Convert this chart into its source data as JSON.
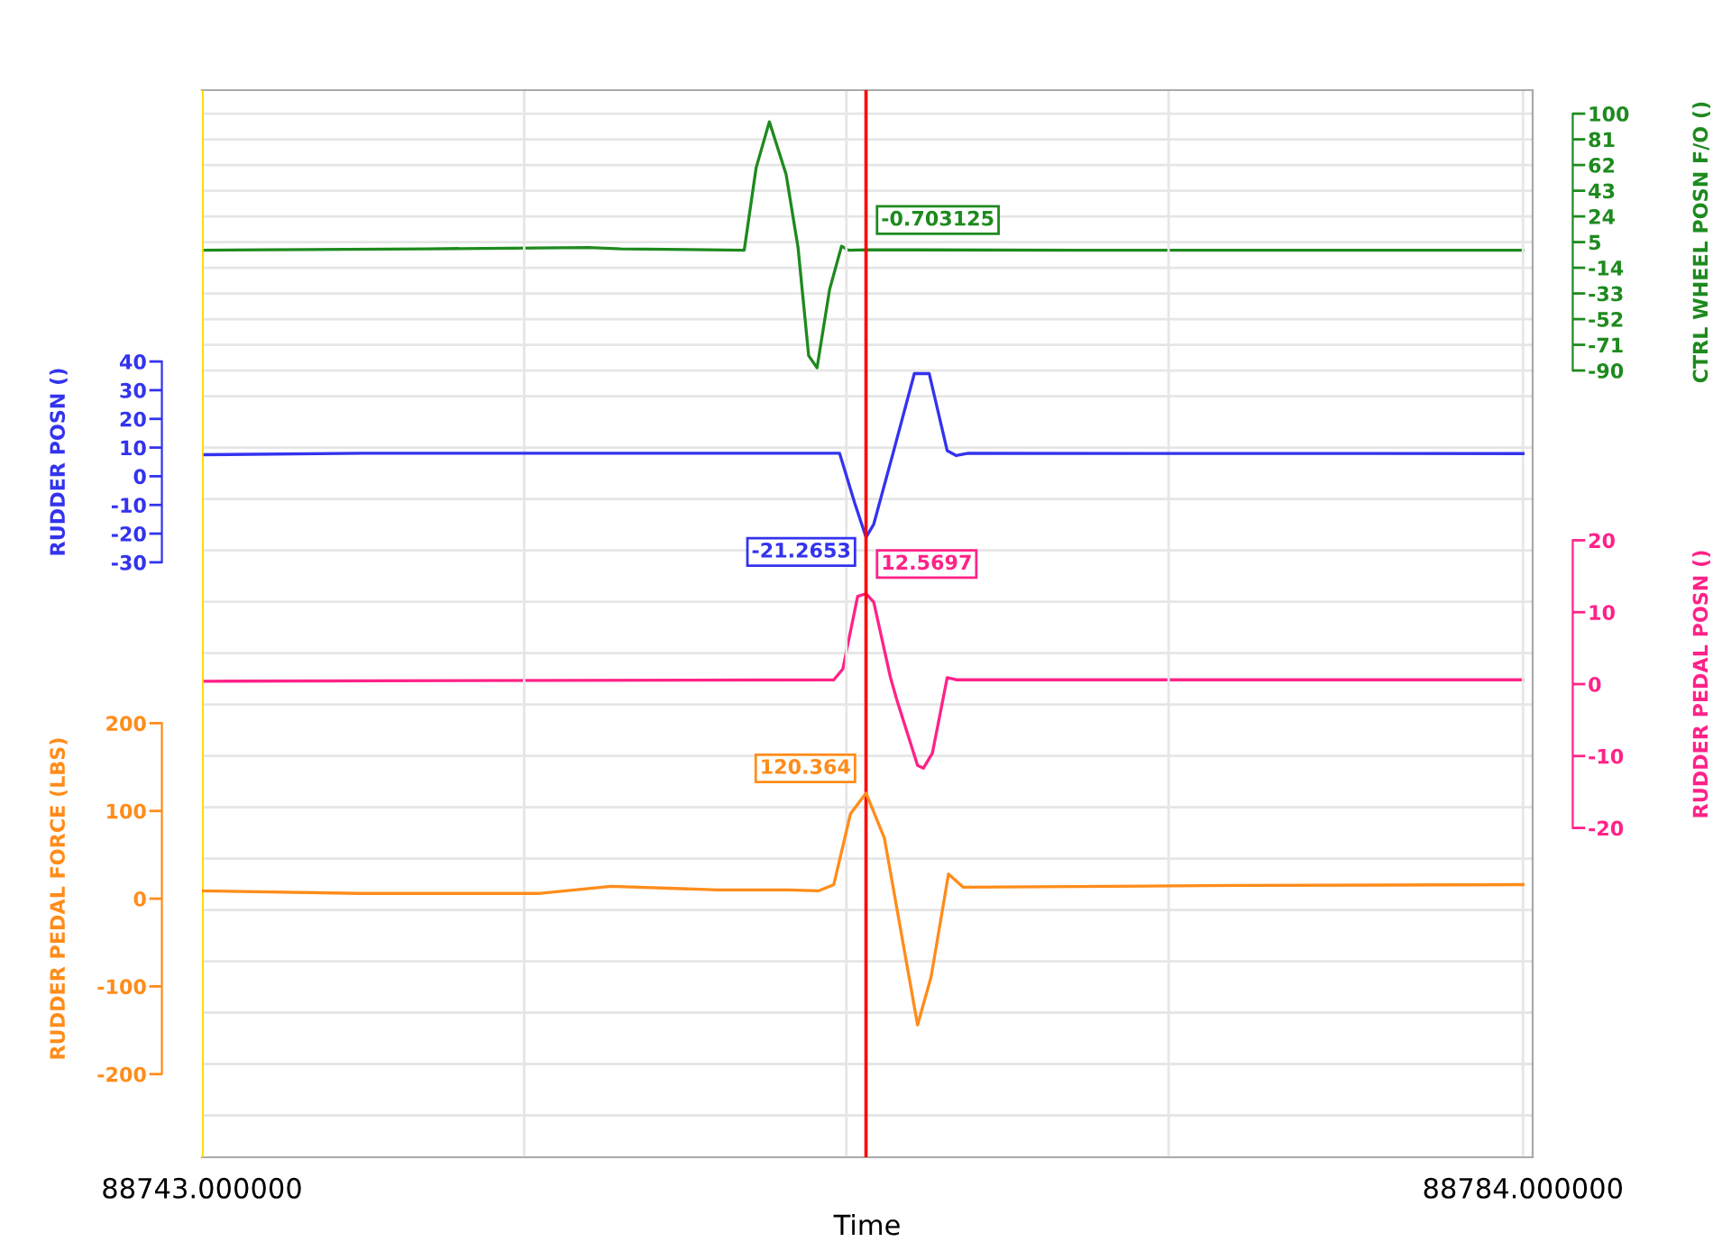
{
  "chart_data": [
    {
      "type": "line",
      "xlabel": "Time",
      "ylabel": "RUDDER POSN ()",
      "y2label": "CTRL WHEEL POSN F/O ()",
      "y3label": "RUDDER PEDAL POSN ()",
      "xlim": [
        88743,
        88784.3
      ],
      "xticks": [
        {
          "value": 88743,
          "label": "88743.000000"
        },
        {
          "value": 88753,
          "label": null
        },
        {
          "value": 88763,
          "label": null
        },
        {
          "value": 88773,
          "label": null
        },
        {
          "value": 88784,
          "label": "88784.000000"
        }
      ],
      "ylim": [
        -237.4,
        134.6
      ],
      "yticks": [
        40,
        30,
        20,
        10,
        0,
        -10,
        -20,
        -30
      ],
      "y2lim": [
        -672,
        117.4
      ],
      "y2ticks": [
        100,
        81,
        62,
        43,
        24,
        5,
        -14,
        -33,
        -52,
        -71,
        -90,
        {
          "value": -109,
          "label": null
        },
        {
          "value": -147,
          "label": null
        },
        {
          "value": -185,
          "label": null
        },
        {
          "value": -223,
          "label": null
        },
        {
          "value": -261,
          "label": null
        },
        {
          "value": -299,
          "label": null
        },
        {
          "value": -337,
          "label": null
        },
        {
          "value": -375,
          "label": null
        },
        {
          "value": -413,
          "label": null
        },
        {
          "value": -451,
          "label": null
        },
        {
          "value": -489,
          "label": null
        },
        {
          "value": -527,
          "label": null
        },
        {
          "value": -565,
          "label": null
        },
        {
          "value": -603,
          "label": null
        },
        {
          "value": -641,
          "label": null
        }
      ],
      "y3lim": [
        -65.8,
        82.6
      ],
      "y3ticks": [
        20,
        10,
        0,
        -10,
        -20
      ],
      "grid": true,
      "marker": "none",
      "line_style": "solid",
      "ref_lines": [
        {
          "axis": "x",
          "value": 88743,
          "color": "#ffd700"
        },
        {
          "axis": "x",
          "value": 88763.61,
          "color": "#ff0000"
        }
      ],
      "series": [
        {
          "axis": "y2",
          "color": "#1e8a1e",
          "x": [
            88743,
            88750,
            88755,
            88756,
            88759.83,
            88760.2,
            88760.61,
            88761.13,
            88761.5,
            88761.83,
            88762.09,
            88762.48,
            88762.85,
            88763.07,
            88763.61,
            88770,
            88784
          ],
          "values": [
            -1,
            0,
            1,
            0,
            -1,
            60,
            94,
            55,
            1,
            -79,
            -88,
            -30,
            2,
            -1,
            -0.703125,
            -1,
            -1
          ],
          "value_labels": [
            null,
            null,
            null,
            null,
            null,
            null,
            null,
            null,
            null,
            null,
            null,
            null,
            null,
            null,
            "-0.703125",
            null,
            null
          ]
        },
        {
          "axis": "y",
          "color": "#3333ee",
          "x": [
            88743,
            88748,
            88762.79,
            88763.26,
            88763.61,
            88763.85,
            88764.46,
            88765.11,
            88765.57,
            88766.13,
            88766.41,
            88766.78,
            88784
          ],
          "values": [
            7.5,
            8.0,
            8.0,
            -9.4,
            -21.2653,
            -16.7,
            8.5,
            35.8,
            35.8,
            8.9,
            7.2,
            8.0,
            7.9
          ],
          "value_labels": [
            null,
            null,
            null,
            null,
            "-21.2653",
            null,
            null,
            null,
            null,
            null,
            null,
            null,
            null
          ]
        },
        {
          "axis": "y3",
          "color": "#ff2288",
          "x": [
            88743,
            88762.61,
            88762.89,
            88763.35,
            88763.61,
            88763.85,
            88764.37,
            88764.56,
            88765.21,
            88765.39,
            88765.67,
            88766.13,
            88766.41,
            88784
          ],
          "values": [
            0.4,
            0.6,
            2.1,
            12.2,
            12.5697,
            11.4,
            0.9,
            -2.1,
            -11.3,
            -11.7,
            -9.6,
            0.9,
            0.6,
            0.6
          ],
          "value_labels": [
            null,
            null,
            null,
            null,
            "12.5697",
            null,
            null,
            null,
            null,
            null,
            null,
            null,
            null,
            null
          ]
        }
      ]
    },
    {
      "type": "line",
      "ylabel": "RUDDER PEDAL FORCE (LBS)",
      "tick_labels": "y",
      "xlim": [
        88743,
        88784.3
      ],
      "ylim": [
        -294.8,
        921.6
      ],
      "yticks": [
        200,
        100,
        0,
        -100,
        -200
      ],
      "marker": "none",
      "line_style": "solid",
      "series": [
        {
          "axis": "y",
          "color": "#ff8c1a",
          "x": [
            88743,
            88747.9,
            88753.5,
            88755.7,
            88759,
            88761.2,
            88762.15,
            88762.61,
            88763.13,
            88763.61,
            88764.18,
            88765.21,
            88765.63,
            88766.17,
            88766.63,
            88775,
            88784
          ],
          "values": [
            9,
            6,
            6,
            14,
            10,
            10,
            9,
            16,
            97,
            120.364,
            69,
            -144,
            -89,
            28,
            13,
            15,
            16
          ],
          "value_labels": [
            null,
            null,
            null,
            null,
            null,
            null,
            null,
            null,
            null,
            "120.364",
            null,
            null,
            null,
            null,
            null,
            null,
            null
          ]
        }
      ]
    }
  ]
}
